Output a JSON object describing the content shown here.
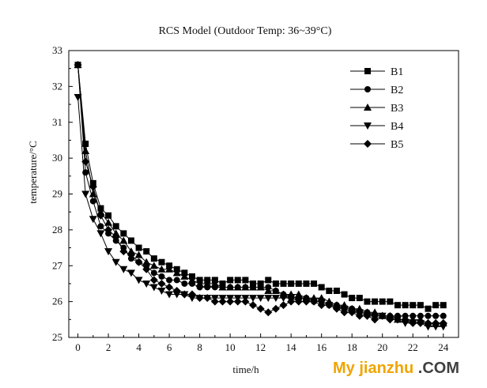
{
  "chart_data": {
    "type": "line",
    "title": "RCS Model (Outdoor Temp: 36~39°C)",
    "xlabel": "time/h",
    "ylabel": "temperature/°C",
    "xlim": [
      -0.6,
      25
    ],
    "ylim": [
      25,
      33
    ],
    "xticks": [
      0,
      2,
      4,
      6,
      8,
      10,
      12,
      14,
      16,
      18,
      20,
      22,
      24
    ],
    "yticks": [
      25,
      26,
      27,
      28,
      29,
      30,
      31,
      32,
      33
    ],
    "legend_position": "top-right",
    "grid": false,
    "series": [
      {
        "name": "B1",
        "marker": "square",
        "x": [
          0,
          0.5,
          1,
          1.5,
          2,
          2.5,
          3,
          3.5,
          4,
          4.5,
          5,
          5.5,
          6,
          6.5,
          7,
          7.5,
          8,
          8.5,
          9,
          9.5,
          10,
          10.5,
          11,
          11.5,
          12,
          12.5,
          13,
          13.5,
          14,
          14.5,
          15,
          15.5,
          16,
          16.5,
          17,
          17.5,
          18,
          18.5,
          19,
          19.5,
          20,
          20.5,
          21,
          21.5,
          22,
          22.5,
          23,
          23.5,
          24
        ],
        "y": [
          32.6,
          30.4,
          29.3,
          28.6,
          28.4,
          28.1,
          27.9,
          27.7,
          27.5,
          27.4,
          27.2,
          27.1,
          27.0,
          26.9,
          26.8,
          26.7,
          26.6,
          26.6,
          26.6,
          26.5,
          26.6,
          26.6,
          26.6,
          26.5,
          26.5,
          26.6,
          26.5,
          26.5,
          26.5,
          26.5,
          26.5,
          26.5,
          26.4,
          26.3,
          26.3,
          26.2,
          26.1,
          26.1,
          26.0,
          26.0,
          26.0,
          26.0,
          25.9,
          25.9,
          25.9,
          25.9,
          25.8,
          25.9,
          25.9
        ]
      },
      {
        "name": "B2",
        "marker": "circle",
        "x": [
          0,
          0.5,
          1,
          1.5,
          2,
          2.5,
          3,
          3.5,
          4,
          4.5,
          5,
          5.5,
          6,
          6.5,
          7,
          7.5,
          8,
          8.5,
          9,
          9.5,
          10,
          10.5,
          11,
          11.5,
          12,
          12.5,
          13,
          13.5,
          14,
          14.5,
          15,
          15.5,
          16,
          16.5,
          17,
          17.5,
          18,
          18.5,
          19,
          19.5,
          20,
          20.5,
          21,
          21.5,
          22,
          22.5,
          23,
          23.5,
          24
        ],
        "y": [
          32.6,
          29.6,
          28.8,
          28.1,
          27.9,
          27.7,
          27.5,
          27.2,
          27.1,
          27.0,
          26.8,
          26.7,
          26.6,
          26.6,
          26.5,
          26.5,
          26.4,
          26.4,
          26.4,
          26.4,
          26.4,
          26.4,
          26.4,
          26.4,
          26.4,
          26.4,
          26.3,
          26.2,
          26.1,
          26.1,
          26.1,
          26.0,
          26.0,
          25.9,
          25.9,
          25.8,
          25.8,
          25.7,
          25.7,
          25.6,
          25.6,
          25.6,
          25.6,
          25.6,
          25.6,
          25.6,
          25.6,
          25.6,
          25.6
        ]
      },
      {
        "name": "B3",
        "marker": "triangle-up",
        "x": [
          0,
          0.5,
          1,
          1.5,
          2,
          2.5,
          3,
          3.5,
          4,
          4.5,
          5,
          5.5,
          6,
          6.5,
          7,
          7.5,
          8,
          8.5,
          9,
          9.5,
          10,
          10.5,
          11,
          11.5,
          12,
          12.5,
          13,
          13.5,
          14,
          14.5,
          15,
          15.5,
          16,
          16.5,
          17,
          17.5,
          18,
          18.5,
          19,
          19.5,
          20,
          20.5,
          21,
          21.5,
          22,
          22.5,
          23,
          23.5,
          24
        ],
        "y": [
          32.6,
          30.2,
          29.0,
          28.5,
          28.2,
          27.9,
          27.7,
          27.4,
          27.3,
          27.1,
          27.0,
          26.9,
          26.9,
          26.8,
          26.7,
          26.6,
          26.5,
          26.5,
          26.5,
          26.4,
          26.4,
          26.4,
          26.4,
          26.4,
          26.4,
          26.3,
          26.3,
          26.2,
          26.2,
          26.2,
          26.1,
          26.1,
          26.1,
          26.0,
          25.9,
          25.9,
          25.8,
          25.8,
          25.7,
          25.7,
          25.6,
          25.6,
          25.5,
          25.5,
          25.5,
          25.5,
          25.4,
          25.4,
          25.4
        ]
      },
      {
        "name": "B4",
        "marker": "triangle-down",
        "x": [
          0,
          0.5,
          1,
          1.5,
          2,
          2.5,
          3,
          3.5,
          4,
          4.5,
          5,
          5.5,
          6,
          6.5,
          7,
          7.5,
          8,
          8.5,
          9,
          9.5,
          10,
          10.5,
          11,
          11.5,
          12,
          12.5,
          13,
          13.5,
          14,
          14.5,
          15,
          15.5,
          16,
          16.5,
          17,
          17.5,
          18,
          18.5,
          19,
          19.5,
          20,
          20.5,
          21,
          21.5,
          22,
          22.5,
          23,
          23.5,
          24
        ],
        "y": [
          31.7,
          29.0,
          28.3,
          27.9,
          27.4,
          27.1,
          26.9,
          26.8,
          26.6,
          26.5,
          26.4,
          26.3,
          26.2,
          26.2,
          26.2,
          26.1,
          26.1,
          26.1,
          26.1,
          26.1,
          26.1,
          26.1,
          26.1,
          26.1,
          26.1,
          26.1,
          26.1,
          26.1,
          26.1,
          26.0,
          26.0,
          26.0,
          26.0,
          25.9,
          25.8,
          25.8,
          25.7,
          25.7,
          25.6,
          25.6,
          25.6,
          25.5,
          25.5,
          25.4,
          25.4,
          25.4,
          25.3,
          25.3,
          25.3
        ]
      },
      {
        "name": "B5",
        "marker": "diamond",
        "x": [
          0,
          0.5,
          1,
          1.5,
          2,
          2.5,
          3,
          3.5,
          4,
          4.5,
          5,
          5.5,
          6,
          6.5,
          7,
          7.5,
          8,
          8.5,
          9,
          9.5,
          10,
          10.5,
          11,
          11.5,
          12,
          12.5,
          13,
          13.5,
          14,
          14.5,
          15,
          15.5,
          16,
          16.5,
          17,
          17.5,
          18,
          18.5,
          19,
          19.5,
          20,
          20.5,
          21,
          21.5,
          22,
          22.5,
          23,
          23.5,
          24
        ],
        "y": [
          32.6,
          29.9,
          29.2,
          28.4,
          28.0,
          27.8,
          27.4,
          27.3,
          27.1,
          26.9,
          26.6,
          26.5,
          26.4,
          26.3,
          26.2,
          26.2,
          26.1,
          26.1,
          26.0,
          26.0,
          26.0,
          26.0,
          26.0,
          25.9,
          25.8,
          25.7,
          25.8,
          25.9,
          26.0,
          26.0,
          26.0,
          26.0,
          25.9,
          25.9,
          25.8,
          25.7,
          25.7,
          25.6,
          25.6,
          25.5,
          25.6,
          25.5,
          25.5,
          25.5,
          25.4,
          25.4,
          25.4,
          25.4,
          25.4
        ]
      }
    ]
  },
  "watermark": {
    "main": "My jianzhu",
    "suffix": ".COM"
  }
}
